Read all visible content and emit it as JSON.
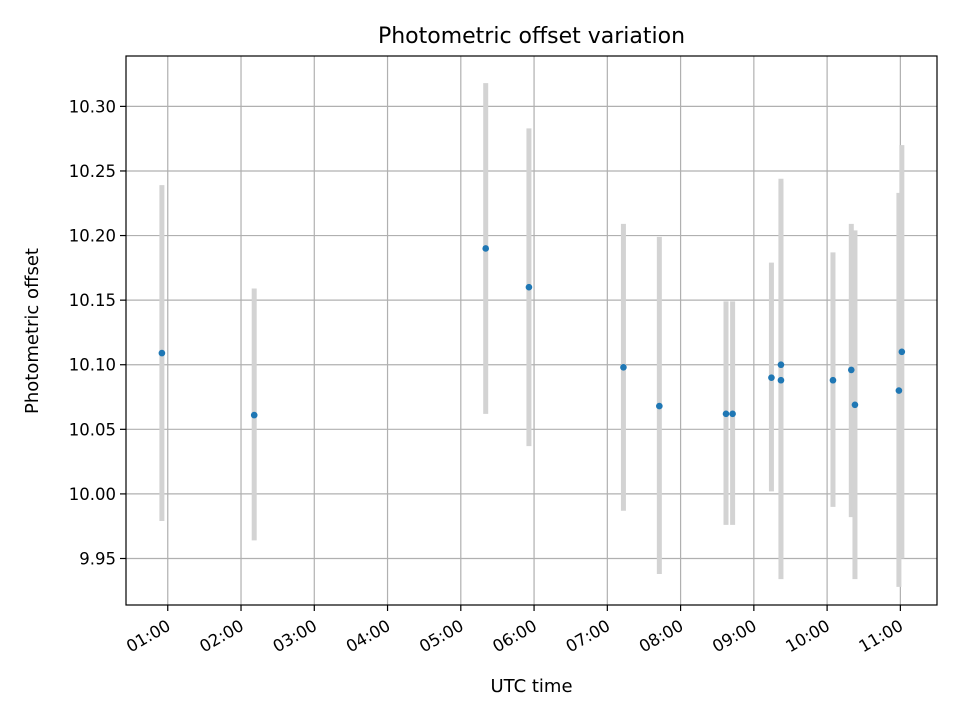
{
  "chart_data": {
    "type": "scatter",
    "title": "Photometric offset variation",
    "xlabel": "UTC time",
    "ylabel": "Photometric offset",
    "xlim": [
      0.43,
      11.5
    ],
    "ylim": [
      9.914,
      10.339
    ],
    "grid": true,
    "x_ticks": [
      {
        "value": 1,
        "label": "01:00"
      },
      {
        "value": 2,
        "label": "02:00"
      },
      {
        "value": 3,
        "label": "03:00"
      },
      {
        "value": 4,
        "label": "04:00"
      },
      {
        "value": 5,
        "label": "05:00"
      },
      {
        "value": 6,
        "label": "06:00"
      },
      {
        "value": 7,
        "label": "07:00"
      },
      {
        "value": 8,
        "label": "08:00"
      },
      {
        "value": 9,
        "label": "09:00"
      },
      {
        "value": 10,
        "label": "10:00"
      },
      {
        "value": 11,
        "label": "11:00"
      }
    ],
    "y_ticks": [
      {
        "value": 9.95,
        "label": "9.95"
      },
      {
        "value": 10.0,
        "label": "10.00"
      },
      {
        "value": 10.05,
        "label": "10.05"
      },
      {
        "value": 10.1,
        "label": "10.10"
      },
      {
        "value": 10.15,
        "label": "10.15"
      },
      {
        "value": 10.2,
        "label": "10.20"
      },
      {
        "value": 10.25,
        "label": "10.25"
      },
      {
        "value": 10.3,
        "label": "10.30"
      }
    ],
    "colors": {
      "point": "#1f77b4",
      "errorbar": "#d3d3d3",
      "grid": "#b0b0b0",
      "axes": "#000000"
    },
    "points": [
      {
        "x": 0.92,
        "y": 10.109,
        "yerr_low": 9.979,
        "yerr_high": 10.239
      },
      {
        "x": 2.18,
        "y": 10.061,
        "yerr_low": 9.964,
        "yerr_high": 10.159
      },
      {
        "x": 5.34,
        "y": 10.19,
        "yerr_low": 10.062,
        "yerr_high": 10.318
      },
      {
        "x": 5.93,
        "y": 10.16,
        "yerr_low": 10.037,
        "yerr_high": 10.283
      },
      {
        "x": 7.22,
        "y": 10.098,
        "yerr_low": 9.987,
        "yerr_high": 10.209
      },
      {
        "x": 7.71,
        "y": 10.068,
        "yerr_low": 9.938,
        "yerr_high": 10.199
      },
      {
        "x": 8.62,
        "y": 10.062,
        "yerr_low": 9.976,
        "yerr_high": 10.149
      },
      {
        "x": 8.71,
        "y": 10.062,
        "yerr_low": 9.976,
        "yerr_high": 10.149
      },
      {
        "x": 9.24,
        "y": 10.09,
        "yerr_low": 10.002,
        "yerr_high": 10.179
      },
      {
        "x": 9.37,
        "y": 10.1,
        "yerr_low": 9.956,
        "yerr_high": 10.244
      },
      {
        "x": 9.37,
        "y": 10.088,
        "yerr_low": 9.934,
        "yerr_high": 10.242
      },
      {
        "x": 10.08,
        "y": 10.088,
        "yerr_low": 9.99,
        "yerr_high": 10.187
      },
      {
        "x": 10.33,
        "y": 10.096,
        "yerr_low": 9.982,
        "yerr_high": 10.209
      },
      {
        "x": 10.38,
        "y": 10.069,
        "yerr_low": 9.934,
        "yerr_high": 10.204
      },
      {
        "x": 10.98,
        "y": 10.08,
        "yerr_low": 9.928,
        "yerr_high": 10.233
      },
      {
        "x": 11.02,
        "y": 10.11,
        "yerr_low": 9.95,
        "yerr_high": 10.27
      }
    ]
  }
}
